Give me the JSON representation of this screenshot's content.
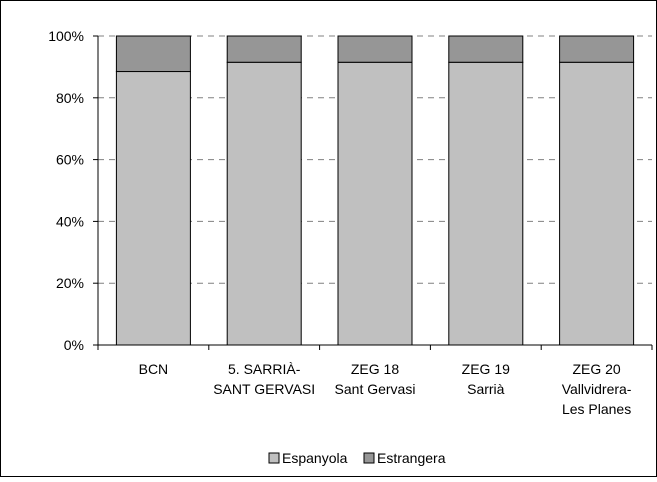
{
  "chart_data": {
    "type": "bar",
    "stacked": true,
    "percent": true,
    "categories": [
      [
        "BCN"
      ],
      [
        "5. SARRIÀ-",
        "SANT GERVASI"
      ],
      [
        "ZEG 18",
        "Sant Gervasi"
      ],
      [
        "ZEG 19",
        "Sarrià"
      ],
      [
        "ZEG 20",
        "Vallvidrera-",
        "Les Planes"
      ]
    ],
    "series": [
      {
        "name": "Espanyola",
        "values": [
          88.5,
          91.5,
          91.5,
          91.5,
          91.5
        ],
        "color": "#c0c0c0"
      },
      {
        "name": "Estrangera",
        "values": [
          11.5,
          8.5,
          8.5,
          8.5,
          8.5
        ],
        "color": "#969696"
      }
    ],
    "y_ticks": [
      "0%",
      "20%",
      "40%",
      "60%",
      "80%",
      "100%"
    ],
    "ylim": [
      0,
      100
    ],
    "grid": "dashed-horizontal",
    "legend_position": "bottom"
  }
}
